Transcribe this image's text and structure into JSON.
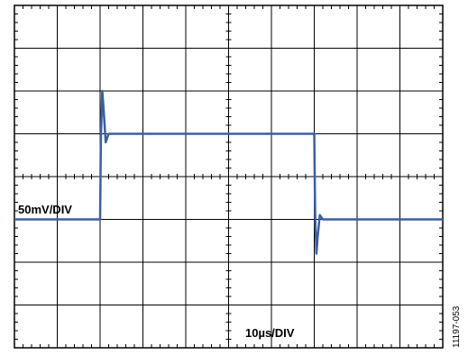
{
  "chart_data": {
    "type": "line",
    "title": "",
    "xlabel": "",
    "ylabel": "",
    "x_divisions": 10,
    "y_divisions": 8,
    "x_per_div_us": 10,
    "y_per_div_mV": 50,
    "grid": true,
    "series": [
      {
        "color": "#3a5fa6",
        "x_us": [
          0,
          20,
          20.2,
          20.5,
          20.8,
          21.3,
          22,
          23,
          50,
          70,
          70.2,
          70.5,
          70.8,
          71.3,
          72,
          73,
          100
        ],
        "y_mV": [
          0,
          0,
          95,
          150,
          130,
          90,
          100,
          100,
          100,
          100,
          5,
          -40,
          -20,
          5,
          0,
          0,
          0
        ]
      }
    ],
    "annotations": {
      "vertical_scale": "50mV/DIV",
      "horizontal_scale": "10µs/DIV",
      "figure_id": "11197-053"
    }
  }
}
